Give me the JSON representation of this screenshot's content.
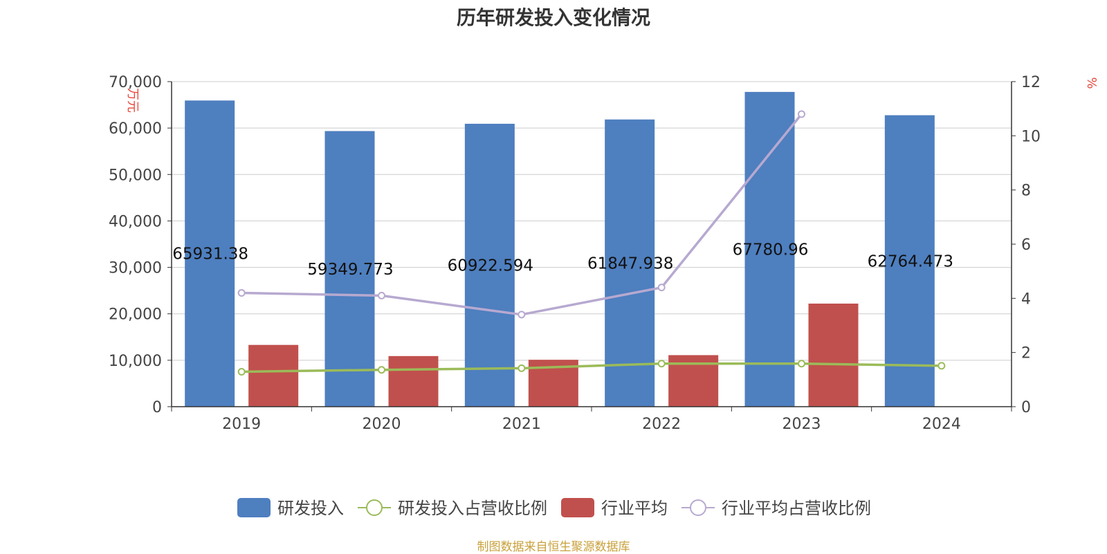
{
  "chart_data": {
    "type": "bar",
    "title": "历年研发投入变化情况",
    "source": "制图数据来自恒生聚源数据库",
    "categories": [
      "2019",
      "2020",
      "2021",
      "2022",
      "2023",
      "2024"
    ],
    "y_left": {
      "label": "万元",
      "min": 0,
      "max": 70000,
      "ticks": [
        "0",
        "10,000",
        "20,000",
        "30,000",
        "40,000",
        "50,000",
        "60,000",
        "70,000"
      ]
    },
    "y_right": {
      "label": "%",
      "min": 0,
      "max": 12,
      "ticks": [
        "0",
        "2",
        "4",
        "6",
        "8",
        "10",
        "12"
      ]
    },
    "grid": true,
    "legend_position": "bottom",
    "series": [
      {
        "name": "研发投入",
        "type": "bar",
        "axis": "left",
        "color": "#4e7fbf",
        "values": [
          65931.38,
          59349.773,
          60922.594,
          61847.938,
          67780.96,
          62764.473
        ],
        "labels": [
          "65931.38",
          "59349.773",
          "60922.594",
          "61847.938",
          "67780.96",
          "62764.473"
        ]
      },
      {
        "name": "研发投入占营收比例",
        "type": "line",
        "axis": "right",
        "color": "#9bbb59",
        "values": [
          1.29,
          1.36,
          1.42,
          1.59,
          1.59,
          1.51
        ]
      },
      {
        "name": "行业平均",
        "type": "bar",
        "axis": "left",
        "color": "#c0504d",
        "values": [
          13300,
          10900,
          10100,
          11100,
          22200,
          null
        ]
      },
      {
        "name": "行业平均占营收比例",
        "type": "line",
        "axis": "right",
        "color": "#b7a9d0",
        "values": [
          4.2,
          4.1,
          3.4,
          4.4,
          10.8,
          null
        ]
      }
    ]
  }
}
